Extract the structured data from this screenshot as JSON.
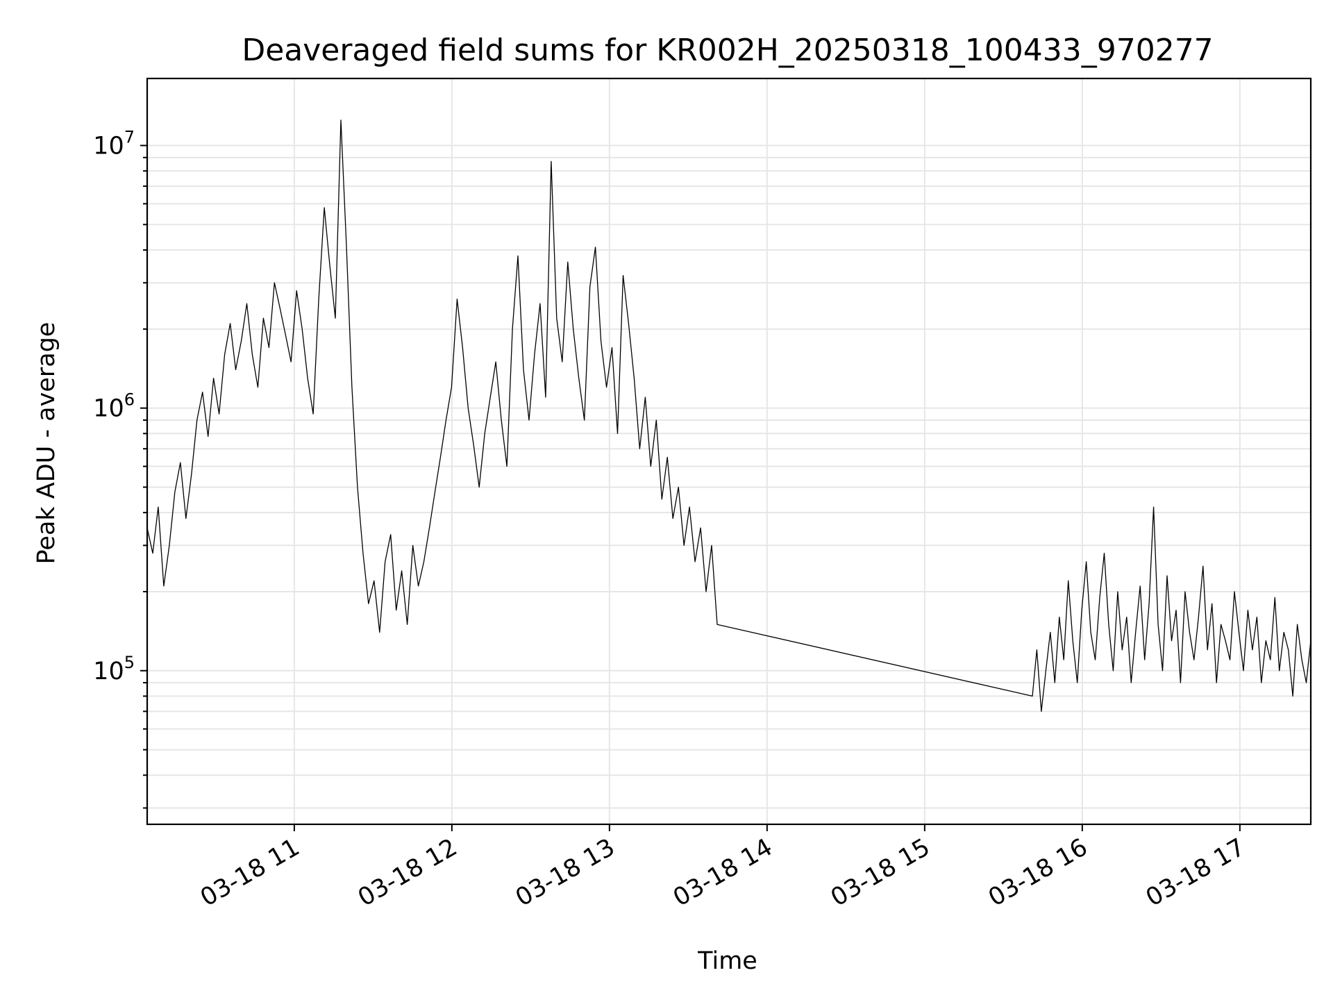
{
  "chart_data": {
    "type": "line",
    "title": "Deaveraged field sums for KR002H_20250318_100433_970277",
    "xlabel": "Time",
    "ylabel": "Peak ADU - average",
    "y_scale": "log",
    "grid": true,
    "grid_minor": true,
    "xlim": [
      "03-18 10:04",
      "03-18 17:27"
    ],
    "ylim": [
      26000,
      18000000
    ],
    "x_ticks": [
      "03-18 11",
      "03-18 12",
      "03-18 13",
      "03-18 14",
      "03-18 15",
      "03-18 16",
      "03-18 17"
    ],
    "y_ticks": [
      {
        "base": "10",
        "exp": "5",
        "value": 100000
      },
      {
        "base": "10",
        "exp": "6",
        "value": 1000000
      },
      {
        "base": "10",
        "exp": "7",
        "value": 10000000
      }
    ],
    "series": [
      {
        "color": "#000000",
        "segments": [
          {
            "start": "03-18 10:04",
            "end": "03-18 13:41",
            "values": [
              350000,
              280000,
              420000,
              210000,
              300000,
              480000,
              620000,
              380000,
              560000,
              900000,
              1150000,
              780000,
              1300000,
              950000,
              1600000,
              2100000,
              1400000,
              1800000,
              2500000,
              1600000,
              1200000,
              2200000,
              1700000,
              3000000,
              2400000,
              1900000,
              1500000,
              2800000,
              2000000,
              1300000,
              950000,
              2600000,
              5800000,
              3500000,
              2200000,
              12500000,
              4200000,
              1200000,
              500000,
              280000,
              180000,
              220000,
              140000,
              260000,
              330000,
              170000,
              240000,
              150000,
              300000,
              210000,
              260000,
              350000,
              480000,
              650000,
              900000,
              1200000,
              2600000,
              1700000,
              1000000,
              720000,
              500000,
              800000,
              1100000,
              1500000,
              900000,
              600000,
              2000000,
              3800000,
              1400000,
              900000,
              1600000,
              2500000,
              1100000,
              8700000,
              2200000,
              1500000,
              3600000,
              2000000,
              1300000,
              900000,
              2900000,
              4100000,
              1800000,
              1200000,
              1700000,
              800000,
              3200000,
              2100000,
              1300000,
              700000,
              1100000,
              600000,
              900000,
              450000,
              650000,
              380000,
              500000,
              300000,
              420000,
              260000,
              350000,
              200000,
              300000,
              150000
            ]
          },
          {
            "start": "03-18 15:41",
            "end": "03-18 17:27",
            "values": [
              80000,
              120000,
              70000,
              100000,
              140000,
              90000,
              160000,
              110000,
              220000,
              130000,
              90000,
              170000,
              260000,
              140000,
              110000,
              190000,
              280000,
              150000,
              100000,
              200000,
              120000,
              160000,
              90000,
              140000,
              210000,
              110000,
              180000,
              420000,
              150000,
              100000,
              230000,
              130000,
              170000,
              90000,
              200000,
              140000,
              110000,
              160000,
              250000,
              120000,
              180000,
              90000,
              150000,
              130000,
              110000,
              200000,
              140000,
              100000,
              170000,
              120000,
              160000,
              90000,
              130000,
              110000,
              190000,
              100000,
              140000,
              120000,
              80000,
              150000,
              110000,
              90000,
              130000
            ]
          }
        ]
      }
    ]
  }
}
